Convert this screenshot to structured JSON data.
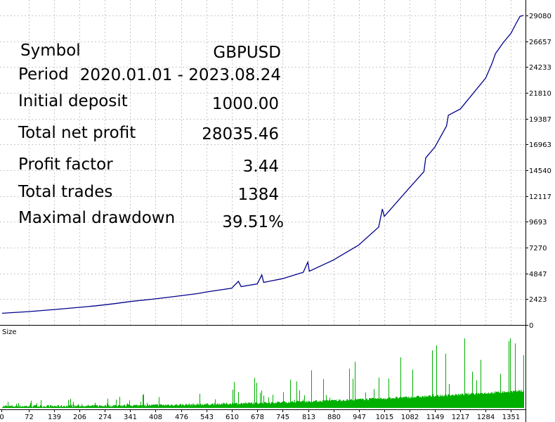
{
  "stats": {
    "symbol_label": "Symbol",
    "symbol_value": "GBPUSD",
    "period_label": "Period",
    "period_value": "2020.01.01 - 2023.08.24",
    "deposit_label": "Initial deposit",
    "deposit_value": "1000.00",
    "profit_label": "Total net profit",
    "profit_value": "28035.46",
    "pf_label": "Profit factor",
    "pf_value": "3.44",
    "trades_label": "Total trades",
    "trades_value": "1384",
    "dd_label": "Maximal drawdown",
    "dd_value": "39.51%"
  },
  "chart_data": [
    {
      "type": "line",
      "title": "",
      "y_ticks": [
        "29080",
        "26657",
        "24233",
        "21810",
        "19387",
        "16963",
        "14540",
        "12117",
        "9693",
        "7270",
        "4847",
        "2423",
        "0"
      ],
      "ylim": [
        0,
        29080
      ],
      "xlim": [
        1,
        1384
      ],
      "grid": true,
      "line_color": "#00008b",
      "series": [
        {
          "x": [
            1,
            70,
            139,
            206,
            250,
            300,
            341,
            408,
            476,
            520,
            543,
            610,
            628,
            635,
            678,
            690,
            695,
            745,
            800,
            812,
            816,
            880,
            947,
            1000,
            1010,
            1015,
            1082,
            1120,
            1125,
            1149,
            1180,
            1185,
            1217,
            1284,
            1300,
            1310,
            1330,
            1351,
            1365,
            1375,
            1384
          ],
          "y": [
            1100,
            1250,
            1450,
            1650,
            1800,
            2000,
            2200,
            2450,
            2750,
            2950,
            3100,
            3450,
            4100,
            3600,
            3850,
            4700,
            4000,
            4350,
            4950,
            5900,
            5050,
            6100,
            7500,
            9200,
            10900,
            10200,
            12900,
            14400,
            15700,
            16700,
            18700,
            19700,
            20300,
            23200,
            24500,
            25500,
            26500,
            27400,
            28350,
            29000,
            29080
          ]
        }
      ]
    },
    {
      "type": "bar",
      "title": "Size",
      "x_ticks": [
        "0",
        "72",
        "139",
        "206",
        "274",
        "341",
        "408",
        "476",
        "543",
        "610",
        "678",
        "745",
        "813",
        "880",
        "947",
        "1015",
        "1082",
        "1149",
        "1217",
        "1284",
        "1351"
      ],
      "xlim": [
        1,
        1384
      ],
      "bar_color": "#00b000"
    }
  ]
}
